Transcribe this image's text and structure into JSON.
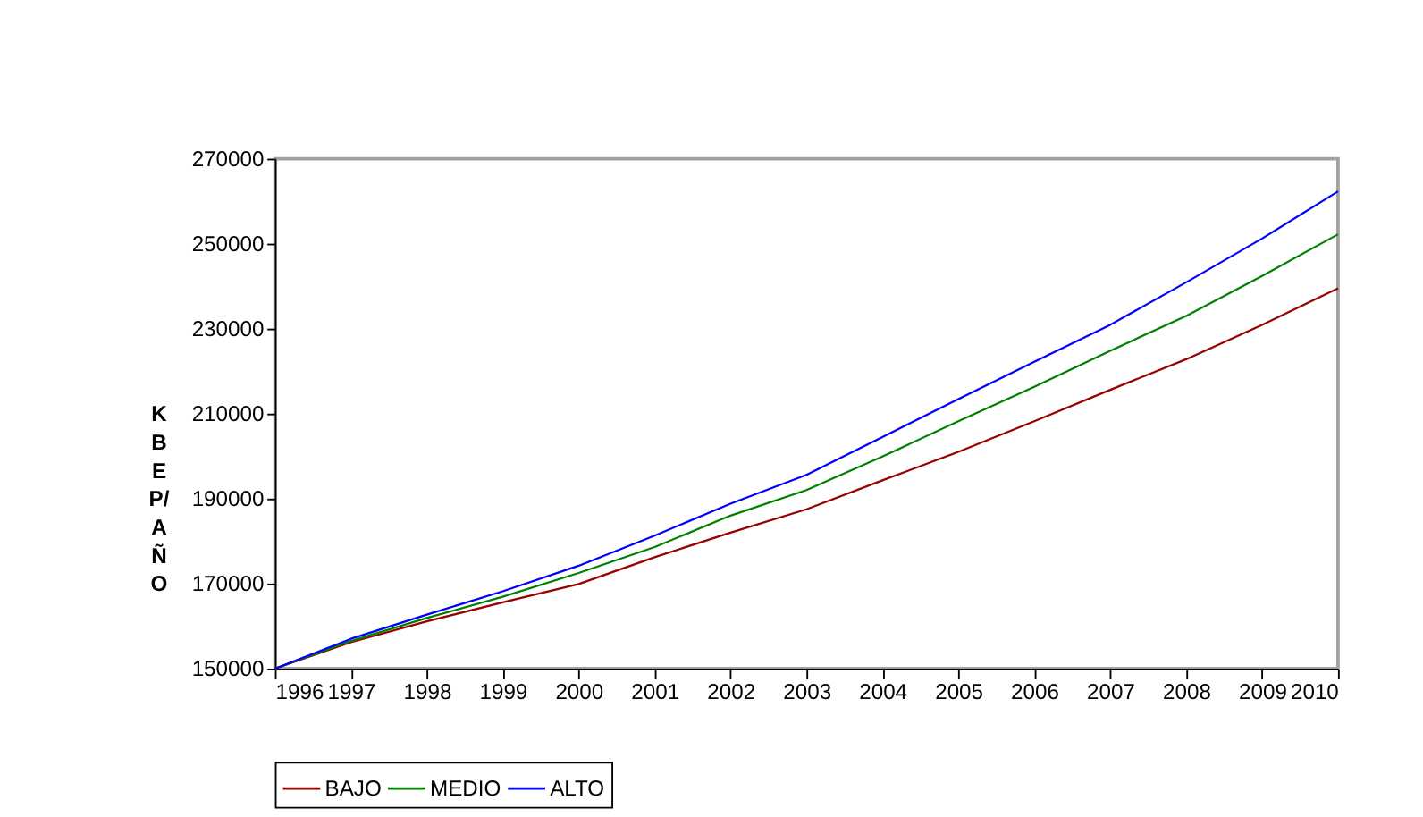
{
  "chart_data": {
    "type": "line",
    "ylabel": "KBEP/AÑO",
    "categories": [
      "1996",
      "1997",
      "1998",
      "1999",
      "2000",
      "2001",
      "2002",
      "2003",
      "2004",
      "2005",
      "2006",
      "2007",
      "2008",
      "2009",
      "2010"
    ],
    "series": [
      {
        "name": "BAJO",
        "color": "#990000",
        "values": [
          150000,
          156200,
          161100,
          165600,
          169900,
          176200,
          182000,
          187500,
          194300,
          201000,
          208200,
          215600,
          222800,
          230900,
          239500
        ]
      },
      {
        "name": "MEDIO",
        "color": "#008000",
        "values": [
          150000,
          156500,
          161900,
          166900,
          172500,
          178600,
          186000,
          192000,
          199900,
          208200,
          216300,
          224800,
          233000,
          242400,
          252200
        ]
      },
      {
        "name": "ALTO",
        "color": "#0000ff",
        "values": [
          150000,
          157000,
          162700,
          168200,
          174200,
          181300,
          188800,
          195600,
          204500,
          213400,
          222200,
          230900,
          240900,
          251200,
          262300
        ]
      }
    ],
    "ylim": [
      150000,
      270000
    ],
    "yticks": [
      150000,
      170000,
      190000,
      210000,
      230000,
      250000,
      270000
    ],
    "grid": false,
    "legend": "bottom",
    "marker": "none",
    "line_style": "solid"
  }
}
